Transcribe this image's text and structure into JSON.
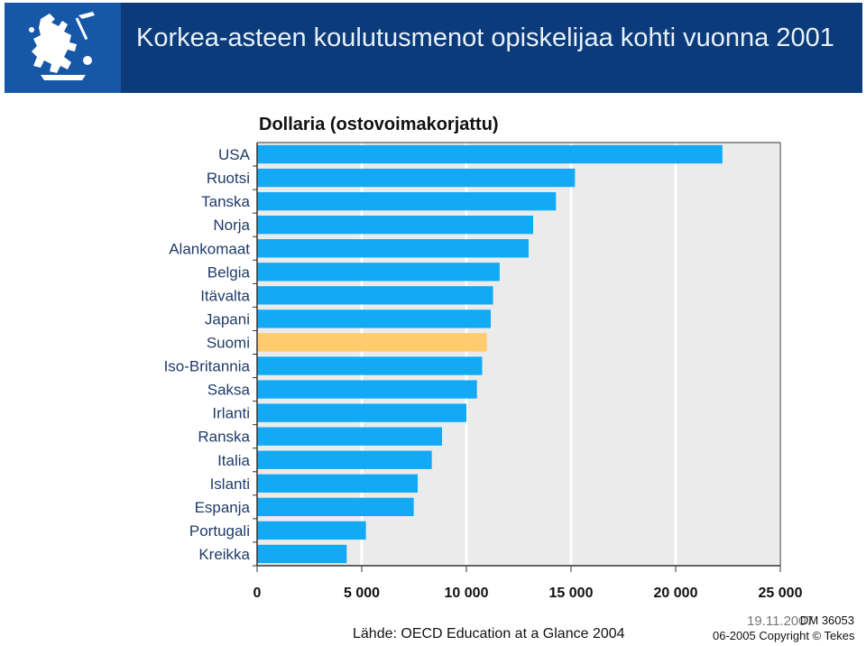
{
  "header": {
    "title": "Korkea-asteen koulutusmenot opiskelijaa kohti vuonna 2001",
    "logo_icon": "finnish-lion-coat-of-arms-icon"
  },
  "footer": {
    "source": "Lähde: OECD Education at a Glance 2004",
    "date": "19.11.2007",
    "doc_id": "DM 36053",
    "copyright": "06-2005 Copyright © Tekes"
  },
  "colors": {
    "header_bg": "#0b3b7a",
    "logo_bg": "#1757a8",
    "bar": "#12a9f5",
    "highlight_bar": "#fecb6e",
    "plot_bg": "#ebebeb"
  },
  "chart_data": {
    "type": "bar",
    "orientation": "horizontal",
    "title": "Dollaria (ostovoimakorjattu)",
    "categories": [
      "USA",
      "Ruotsi",
      "Tanska",
      "Norja",
      "Alankomaat",
      "Belgia",
      "Itävalta",
      "Japani",
      "Suomi",
      "Iso-Britannia",
      "Saksa",
      "Irlanti",
      "Ranska",
      "Italia",
      "Islanti",
      "Espanja",
      "Portugali",
      "Kreikka"
    ],
    "values": [
      22234,
      15188,
      14280,
      13189,
      12974,
      11589,
      11274,
      11164,
      10981,
      10753,
      10504,
      10003,
      8837,
      8347,
      7674,
      7483,
      5199,
      4280
    ],
    "highlight": "Suomi",
    "xlim": [
      0,
      25000
    ],
    "xticks": [
      0,
      5000,
      10000,
      15000,
      20000,
      25000
    ],
    "xtick_labels": [
      "0",
      "5 000",
      "10 000",
      "15 000",
      "20 000",
      "25 000"
    ],
    "grid": true
  }
}
